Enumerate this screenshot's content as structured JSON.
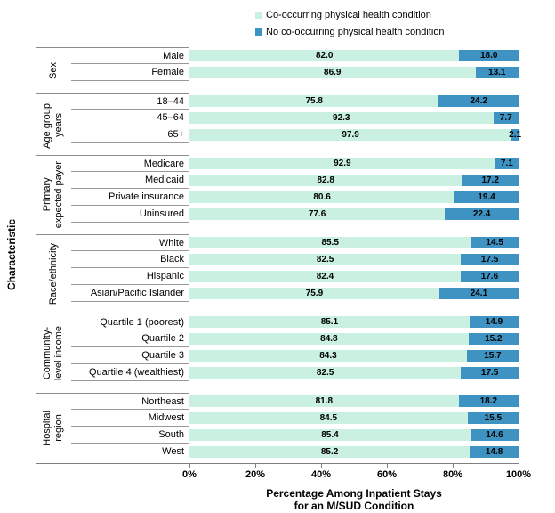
{
  "y_axis_label": "Characteristic",
  "legend": {
    "items": [
      {
        "name": "co-occurring-swatch",
        "label": "Co-occurring physical health condition",
        "color": "#c9f0e0"
      },
      {
        "name": "no-co-occurring-swatch",
        "label": "No co-occurring physical health condition",
        "color": "#3e93c3"
      }
    ]
  },
  "x_axis": {
    "tick_labels": [
      "0%",
      "20%",
      "40%",
      "60%",
      "80%",
      "100%"
    ],
    "title_lines": [
      "Percentage Among Inpatient Stays",
      "for an M/SUD Condition"
    ]
  },
  "chart_data": {
    "type": "bar",
    "orientation": "horizontal",
    "stacked": true,
    "xlim": [
      0,
      100
    ],
    "grid": false,
    "legend_position": "top",
    "value_label_decimals": 1,
    "series_names": [
      "Co-occurring physical health condition",
      "No co-occurring physical health condition"
    ],
    "colors": {
      "co_occurring": "#c9f0e0",
      "no_co_occurring": "#3e93c3"
    },
    "groups": [
      {
        "name_lines": [
          "Sex"
        ],
        "rows": [
          {
            "label": "Male",
            "values": [
              82.0,
              18.0
            ]
          },
          {
            "label": "Female",
            "values": [
              86.9,
              13.1
            ]
          }
        ]
      },
      {
        "name_lines": [
          "Age group,",
          "years"
        ],
        "rows": [
          {
            "label": "18–44",
            "values": [
              75.8,
              24.2
            ]
          },
          {
            "label": "45–64",
            "values": [
              92.3,
              7.7
            ]
          },
          {
            "label": "65+",
            "values": [
              97.9,
              2.1
            ]
          }
        ]
      },
      {
        "name_lines": [
          "Primary",
          "expected payer"
        ],
        "rows": [
          {
            "label": "Medicare",
            "values": [
              92.9,
              7.1
            ]
          },
          {
            "label": "Medicaid",
            "values": [
              82.8,
              17.2
            ]
          },
          {
            "label": "Private insurance",
            "values": [
              80.6,
              19.4
            ]
          },
          {
            "label": "Uninsured",
            "values": [
              77.6,
              22.4
            ]
          }
        ]
      },
      {
        "name_lines": [
          "Race/ethnicity"
        ],
        "rows": [
          {
            "label": "White",
            "values": [
              85.5,
              14.5
            ]
          },
          {
            "label": "Black",
            "values": [
              82.5,
              17.5
            ]
          },
          {
            "label": "Hispanic",
            "values": [
              82.4,
              17.6
            ]
          },
          {
            "label": "Asian/Pacific Islander",
            "values": [
              75.9,
              24.1
            ]
          }
        ]
      },
      {
        "name_lines": [
          "Community-",
          "level income"
        ],
        "rows": [
          {
            "label": "Quartile 1 (poorest)",
            "values": [
              85.1,
              14.9
            ]
          },
          {
            "label": "Quartile 2",
            "values": [
              84.8,
              15.2
            ]
          },
          {
            "label": "Quartile 3",
            "values": [
              84.3,
              15.7
            ]
          },
          {
            "label": "Quartile 4 (wealthiest)",
            "values": [
              82.5,
              17.5
            ]
          }
        ]
      },
      {
        "name_lines": [
          "Hospital",
          "region"
        ],
        "rows": [
          {
            "label": "Northeast",
            "values": [
              81.8,
              18.2
            ]
          },
          {
            "label": "Midwest",
            "values": [
              84.5,
              15.5
            ]
          },
          {
            "label": "South",
            "values": [
              85.4,
              14.6
            ]
          },
          {
            "label": "West",
            "values": [
              85.2,
              14.8
            ]
          }
        ]
      }
    ]
  }
}
